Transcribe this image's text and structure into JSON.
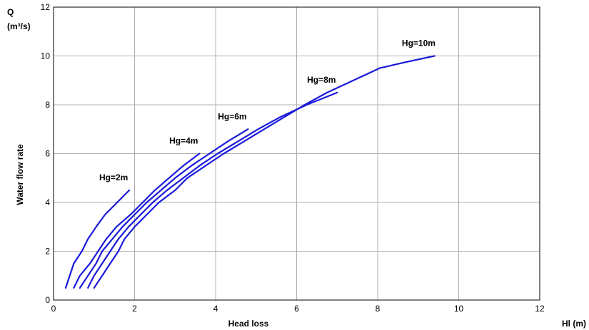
{
  "chart_data": {
    "type": "line",
    "title": "",
    "xlabel": "Head loss",
    "x_unit_label": "Hl (m)",
    "ylabel": "Water flow rate",
    "y_unit_label_line1": "Q",
    "y_unit_label_line2": "(m³/s)",
    "xlim": [
      0,
      12
    ],
    "ylim": [
      0,
      12
    ],
    "xticks": [
      0,
      2,
      4,
      6,
      8,
      10,
      12
    ],
    "yticks": [
      0,
      2,
      4,
      6,
      8,
      10,
      12
    ],
    "grid": true,
    "line_color": "#1a1adb",
    "series": [
      {
        "name": "Hg=2m",
        "points": [
          [
            0.3,
            0.5
          ],
          [
            0.5,
            1.5
          ],
          [
            0.7,
            2.0
          ],
          [
            0.85,
            2.5
          ],
          [
            1.05,
            3.0
          ],
          [
            1.27,
            3.5
          ],
          [
            1.57,
            4.0
          ],
          [
            1.87,
            4.5
          ]
        ]
      },
      {
        "name": "Hg=4m",
        "points": [
          [
            0.5,
            0.5
          ],
          [
            0.65,
            1.0
          ],
          [
            0.9,
            1.5
          ],
          [
            1.1,
            2.0
          ],
          [
            1.3,
            2.5
          ],
          [
            1.55,
            3.0
          ],
          [
            1.9,
            3.5
          ],
          [
            2.2,
            4.0
          ],
          [
            2.5,
            4.5
          ],
          [
            2.85,
            5.0
          ],
          [
            3.2,
            5.5
          ],
          [
            3.6,
            6.0
          ]
        ]
      },
      {
        "name": "Hg=6m",
        "points": [
          [
            0.65,
            0.5
          ],
          [
            0.85,
            1.0
          ],
          [
            1.05,
            1.5
          ],
          [
            1.2,
            2.0
          ],
          [
            1.45,
            2.5
          ],
          [
            1.7,
            3.0
          ],
          [
            2.0,
            3.5
          ],
          [
            2.3,
            4.0
          ],
          [
            2.65,
            4.5
          ],
          [
            3.0,
            5.0
          ],
          [
            3.4,
            5.5
          ],
          [
            3.85,
            6.0
          ],
          [
            4.3,
            6.5
          ],
          [
            4.8,
            7.0
          ]
        ]
      },
      {
        "name": "Hg=8m",
        "points": [
          [
            0.85,
            0.5
          ],
          [
            1.0,
            1.0
          ],
          [
            1.2,
            1.5
          ],
          [
            1.4,
            2.0
          ],
          [
            1.6,
            2.5
          ],
          [
            1.85,
            3.0
          ],
          [
            2.15,
            3.5
          ],
          [
            2.45,
            4.0
          ],
          [
            2.8,
            4.5
          ],
          [
            3.2,
            5.0
          ],
          [
            3.6,
            5.5
          ],
          [
            4.05,
            6.0
          ],
          [
            4.55,
            6.5
          ],
          [
            5.05,
            7.0
          ],
          [
            5.6,
            7.5
          ],
          [
            6.25,
            8.0
          ],
          [
            7.0,
            8.5
          ]
        ]
      },
      {
        "name": "Hg=10m",
        "points": [
          [
            1.0,
            0.5
          ],
          [
            1.2,
            1.0
          ],
          [
            1.4,
            1.5
          ],
          [
            1.6,
            2.0
          ],
          [
            1.75,
            2.5
          ],
          [
            2.0,
            3.0
          ],
          [
            2.3,
            3.5
          ],
          [
            2.6,
            4.0
          ],
          [
            3.0,
            4.5
          ],
          [
            3.3,
            5.0
          ],
          [
            3.75,
            5.5
          ],
          [
            4.2,
            6.0
          ],
          [
            4.7,
            6.5
          ],
          [
            5.2,
            7.0
          ],
          [
            5.7,
            7.5
          ],
          [
            6.2,
            8.0
          ],
          [
            6.75,
            8.5
          ],
          [
            7.4,
            9.0
          ],
          [
            8.05,
            9.5
          ],
          [
            8.7,
            9.75
          ],
          [
            9.4,
            10.0
          ]
        ]
      }
    ]
  }
}
